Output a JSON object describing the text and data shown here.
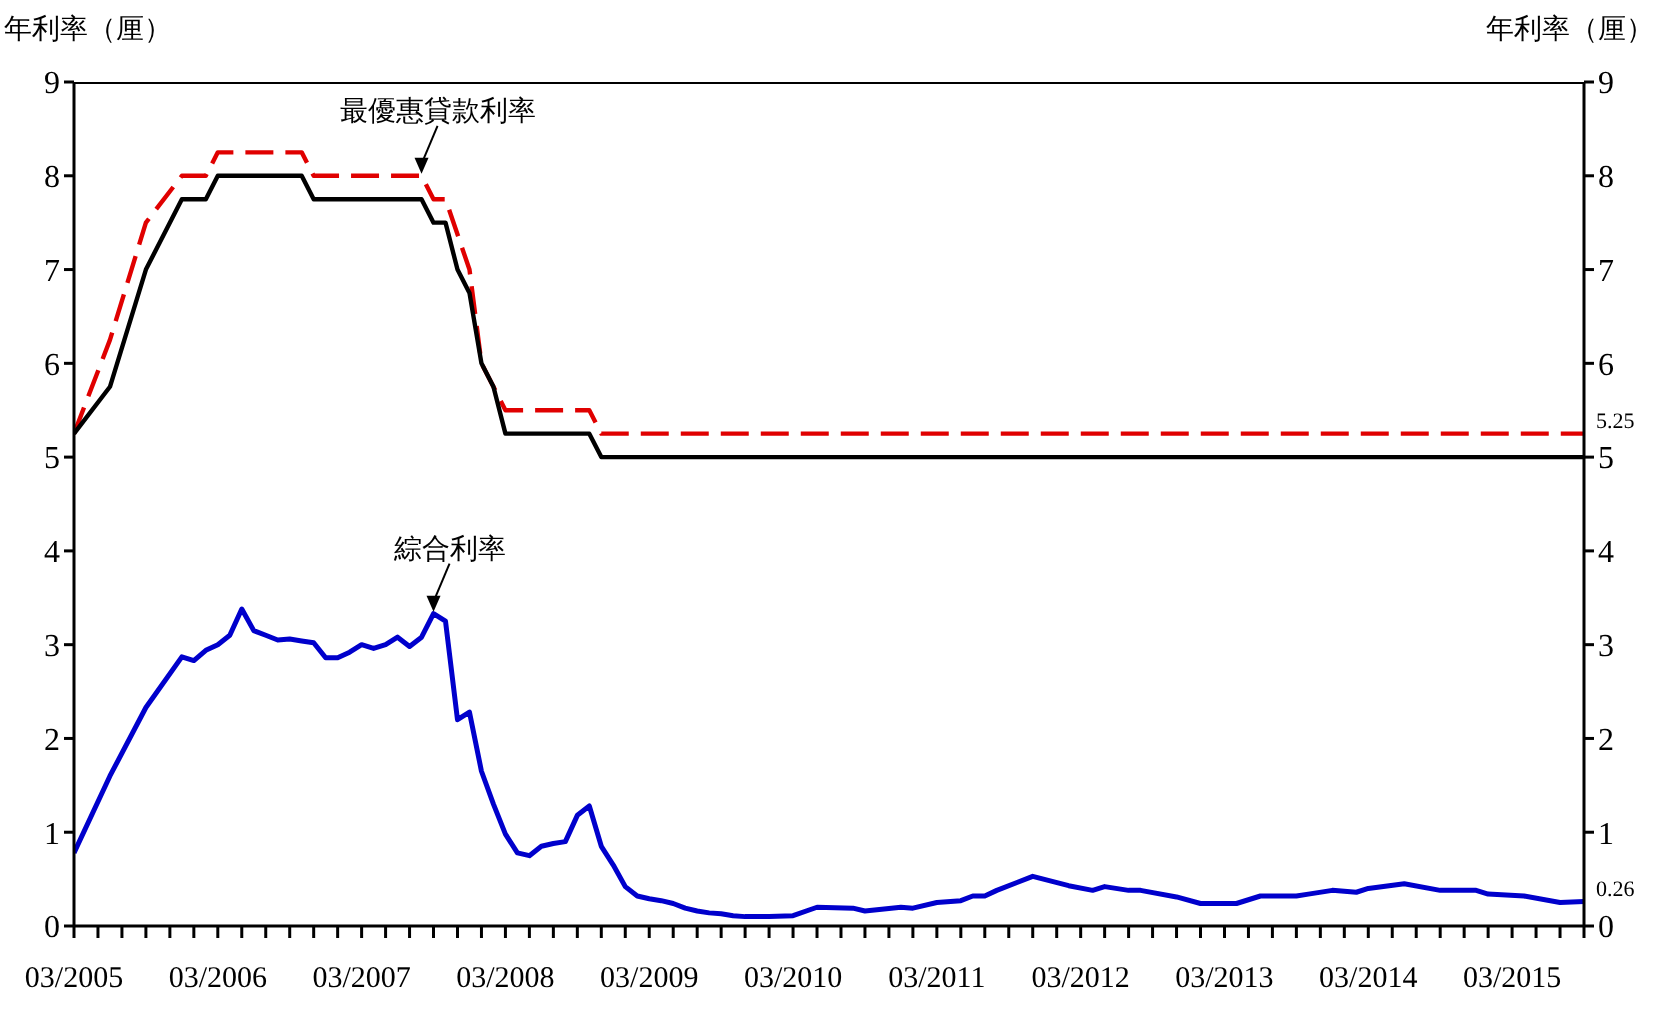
{
  "chart_data": {
    "type": "line",
    "ylabel": "年利率（厘）",
    "y2label": "年利率（厘）",
    "xlim": [
      "2005-03",
      "2015-09"
    ],
    "xticks": [
      {
        "value": "2005-03",
        "label": "03/2005"
      },
      {
        "value": "2005-05",
        "label": null
      },
      {
        "value": "2005-07",
        "label": null
      },
      {
        "value": "2005-09",
        "label": null
      },
      {
        "value": "2005-11",
        "label": null
      },
      {
        "value": "2006-01",
        "label": null
      },
      {
        "value": "2006-03",
        "label": "03/2006"
      },
      {
        "value": "2006-05",
        "label": null
      },
      {
        "value": "2006-07",
        "label": null
      },
      {
        "value": "2006-09",
        "label": null
      },
      {
        "value": "2006-11",
        "label": null
      },
      {
        "value": "2007-01",
        "label": null
      },
      {
        "value": "2007-03",
        "label": "03/2007"
      },
      {
        "value": "2007-05",
        "label": null
      },
      {
        "value": "2007-07",
        "label": null
      },
      {
        "value": "2007-09",
        "label": null
      },
      {
        "value": "2007-11",
        "label": null
      },
      {
        "value": "2008-01",
        "label": null
      },
      {
        "value": "2008-03",
        "label": "03/2008"
      },
      {
        "value": "2008-05",
        "label": null
      },
      {
        "value": "2008-07",
        "label": null
      },
      {
        "value": "2008-09",
        "label": null
      },
      {
        "value": "2008-11",
        "label": null
      },
      {
        "value": "2009-01",
        "label": null
      },
      {
        "value": "2009-03",
        "label": "03/2009"
      },
      {
        "value": "2009-05",
        "label": null
      },
      {
        "value": "2009-07",
        "label": null
      },
      {
        "value": "2009-09",
        "label": null
      },
      {
        "value": "2009-11",
        "label": null
      },
      {
        "value": "2010-01",
        "label": null
      },
      {
        "value": "2010-03",
        "label": "03/2010"
      },
      {
        "value": "2010-05",
        "label": null
      },
      {
        "value": "2010-07",
        "label": null
      },
      {
        "value": "2010-09",
        "label": null
      },
      {
        "value": "2010-11",
        "label": null
      },
      {
        "value": "2011-01",
        "label": null
      },
      {
        "value": "2011-03",
        "label": "03/2011"
      },
      {
        "value": "2011-05",
        "label": null
      },
      {
        "value": "2011-07",
        "label": null
      },
      {
        "value": "2011-09",
        "label": null
      },
      {
        "value": "2011-11",
        "label": null
      },
      {
        "value": "2012-01",
        "label": null
      },
      {
        "value": "2012-03",
        "label": "03/2012"
      },
      {
        "value": "2012-05",
        "label": null
      },
      {
        "value": "2012-07",
        "label": null
      },
      {
        "value": "2012-09",
        "label": null
      },
      {
        "value": "2012-11",
        "label": null
      },
      {
        "value": "2013-01",
        "label": null
      },
      {
        "value": "2013-03",
        "label": "03/2013"
      },
      {
        "value": "2013-05",
        "label": null
      },
      {
        "value": "2013-07",
        "label": null
      },
      {
        "value": "2013-09",
        "label": null
      },
      {
        "value": "2013-11",
        "label": null
      },
      {
        "value": "2014-01",
        "label": null
      },
      {
        "value": "2014-03",
        "label": "03/2014"
      },
      {
        "value": "2014-05",
        "label": null
      },
      {
        "value": "2014-07",
        "label": null
      },
      {
        "value": "2014-09",
        "label": null
      },
      {
        "value": "2014-11",
        "label": null
      },
      {
        "value": "2015-01",
        "label": null
      },
      {
        "value": "2015-03",
        "label": "03/2015"
      },
      {
        "value": "2015-05",
        "label": null
      },
      {
        "value": "2015-07",
        "label": null
      },
      {
        "value": "2015-09",
        "label": null
      }
    ],
    "ylim": [
      0,
      9
    ],
    "yticks": [
      0,
      1,
      2,
      3,
      4,
      5,
      6,
      7,
      8,
      9
    ],
    "y2lim": [
      0,
      9
    ],
    "y2ticks": [
      0,
      1,
      2,
      3,
      4,
      5,
      6,
      7,
      8,
      9
    ],
    "marker": "none",
    "series": [
      {
        "color": "#e00000",
        "line_style": "dashed",
        "x": [
          "2005-03",
          "2005-06",
          "2005-09",
          "2005-12",
          "2006-02",
          "2006-03",
          "2006-10",
          "2006-11",
          "2007-08",
          "2007-09",
          "2007-10",
          "2007-12",
          "2008-01",
          "2008-03",
          "2008-10",
          "2008-11",
          "2015-09"
        ],
        "values": [
          5.25,
          6.25,
          7.5,
          8.0,
          8.0,
          8.25,
          8.25,
          8.0,
          8.0,
          7.75,
          7.75,
          7.0,
          6.0,
          5.5,
          5.5,
          5.25,
          5.25
        ],
        "value_labels": [
          null,
          null,
          null,
          null,
          null,
          null,
          null,
          null,
          null,
          null,
          null,
          null,
          null,
          null,
          null,
          null,
          "5.25"
        ]
      },
      {
        "color": "#000000",
        "line_style": "solid",
        "x": [
          "2005-03",
          "2005-06",
          "2005-09",
          "2005-12",
          "2006-02",
          "2006-03",
          "2006-10",
          "2006-11",
          "2007-08",
          "2007-09",
          "2007-10",
          "2007-11",
          "2007-12",
          "2008-01",
          "2008-02",
          "2008-03",
          "2008-10",
          "2008-11",
          "2015-09"
        ],
        "values": [
          5.25,
          5.75,
          7.0,
          7.75,
          7.75,
          8.0,
          8.0,
          7.75,
          7.75,
          7.5,
          7.5,
          7.0,
          6.75,
          6.0,
          5.75,
          5.25,
          5.25,
          5.0,
          5.0
        ]
      },
      {
        "color": "#0000cc",
        "line_style": "solid",
        "x": [
          "2005-03",
          "2005-06",
          "2005-09",
          "2005-12",
          "2006-01",
          "2006-02",
          "2006-03",
          "2006-04",
          "2006-05",
          "2006-06",
          "2006-07",
          "2006-08",
          "2006-09",
          "2006-10",
          "2006-11",
          "2006-12",
          "2007-01",
          "2007-02",
          "2007-03",
          "2007-04",
          "2007-05",
          "2007-06",
          "2007-07",
          "2007-08",
          "2007-09",
          "2007-10",
          "2007-11",
          "2007-12",
          "2008-01",
          "2008-02",
          "2008-03",
          "2008-04",
          "2008-05",
          "2008-06",
          "2008-07",
          "2008-08",
          "2008-09",
          "2008-10",
          "2008-11",
          "2008-12",
          "2009-01",
          "2009-02",
          "2009-03",
          "2009-04",
          "2009-05",
          "2009-06",
          "2009-07",
          "2009-08",
          "2009-09",
          "2009-10",
          "2009-11",
          "2010-01",
          "2010-03",
          "2010-05",
          "2010-08",
          "2010-09",
          "2010-12",
          "2011-01",
          "2011-03",
          "2011-05",
          "2011-06",
          "2011-07",
          "2011-08",
          "2011-11",
          "2012-02",
          "2012-04",
          "2012-05",
          "2012-07",
          "2012-08",
          "2012-11",
          "2013-01",
          "2013-04",
          "2013-06",
          "2013-09",
          "2013-10",
          "2013-12",
          "2014-02",
          "2014-03",
          "2014-06",
          "2014-09",
          "2014-12",
          "2015-01",
          "2015-04",
          "2015-07",
          "2015-09"
        ],
        "values": [
          0.78,
          1.6,
          2.33,
          2.87,
          2.83,
          2.94,
          3.0,
          3.1,
          3.38,
          3.15,
          3.1,
          3.05,
          3.06,
          3.04,
          3.02,
          2.86,
          2.86,
          2.92,
          3.0,
          2.96,
          3.0,
          3.08,
          2.98,
          3.08,
          3.33,
          3.25,
          2.2,
          2.28,
          1.65,
          1.3,
          0.98,
          0.78,
          0.75,
          0.85,
          0.88,
          0.9,
          1.18,
          1.28,
          0.85,
          0.65,
          0.42,
          0.32,
          0.29,
          0.27,
          0.24,
          0.19,
          0.16,
          0.14,
          0.13,
          0.11,
          0.1,
          0.1,
          0.11,
          0.2,
          0.19,
          0.16,
          0.2,
          0.19,
          0.25,
          0.27,
          0.32,
          0.32,
          0.38,
          0.53,
          0.43,
          0.38,
          0.42,
          0.38,
          0.38,
          0.31,
          0.24,
          0.24,
          0.32,
          0.32,
          0.34,
          0.38,
          0.36,
          0.4,
          0.45,
          0.38,
          0.38,
          0.34,
          0.32,
          0.25,
          0.26
        ],
        "value_labels": [
          null,
          null,
          null,
          null,
          null,
          null,
          null,
          null,
          null,
          null,
          null,
          null,
          null,
          null,
          null,
          null,
          null,
          null,
          null,
          null,
          null,
          null,
          null,
          null,
          null,
          null,
          null,
          null,
          null,
          null,
          null,
          null,
          null,
          null,
          null,
          null,
          null,
          null,
          null,
          null,
          null,
          null,
          null,
          null,
          null,
          null,
          null,
          null,
          null,
          null,
          null,
          null,
          null,
          null,
          null,
          null,
          null,
          null,
          null,
          null,
          null,
          null,
          null,
          null,
          null,
          null,
          null,
          null,
          null,
          null,
          null,
          null,
          null,
          null,
          null,
          null,
          null,
          null,
          null,
          null,
          null,
          null,
          null,
          null,
          "0.26"
        ]
      }
    ],
    "annotations": [
      {
        "text": "最優惠貸款利率",
        "x": "2007-08",
        "y": 8.0
      },
      {
        "text": "綜合利率",
        "x": "2007-09",
        "y": 3.33
      }
    ]
  }
}
